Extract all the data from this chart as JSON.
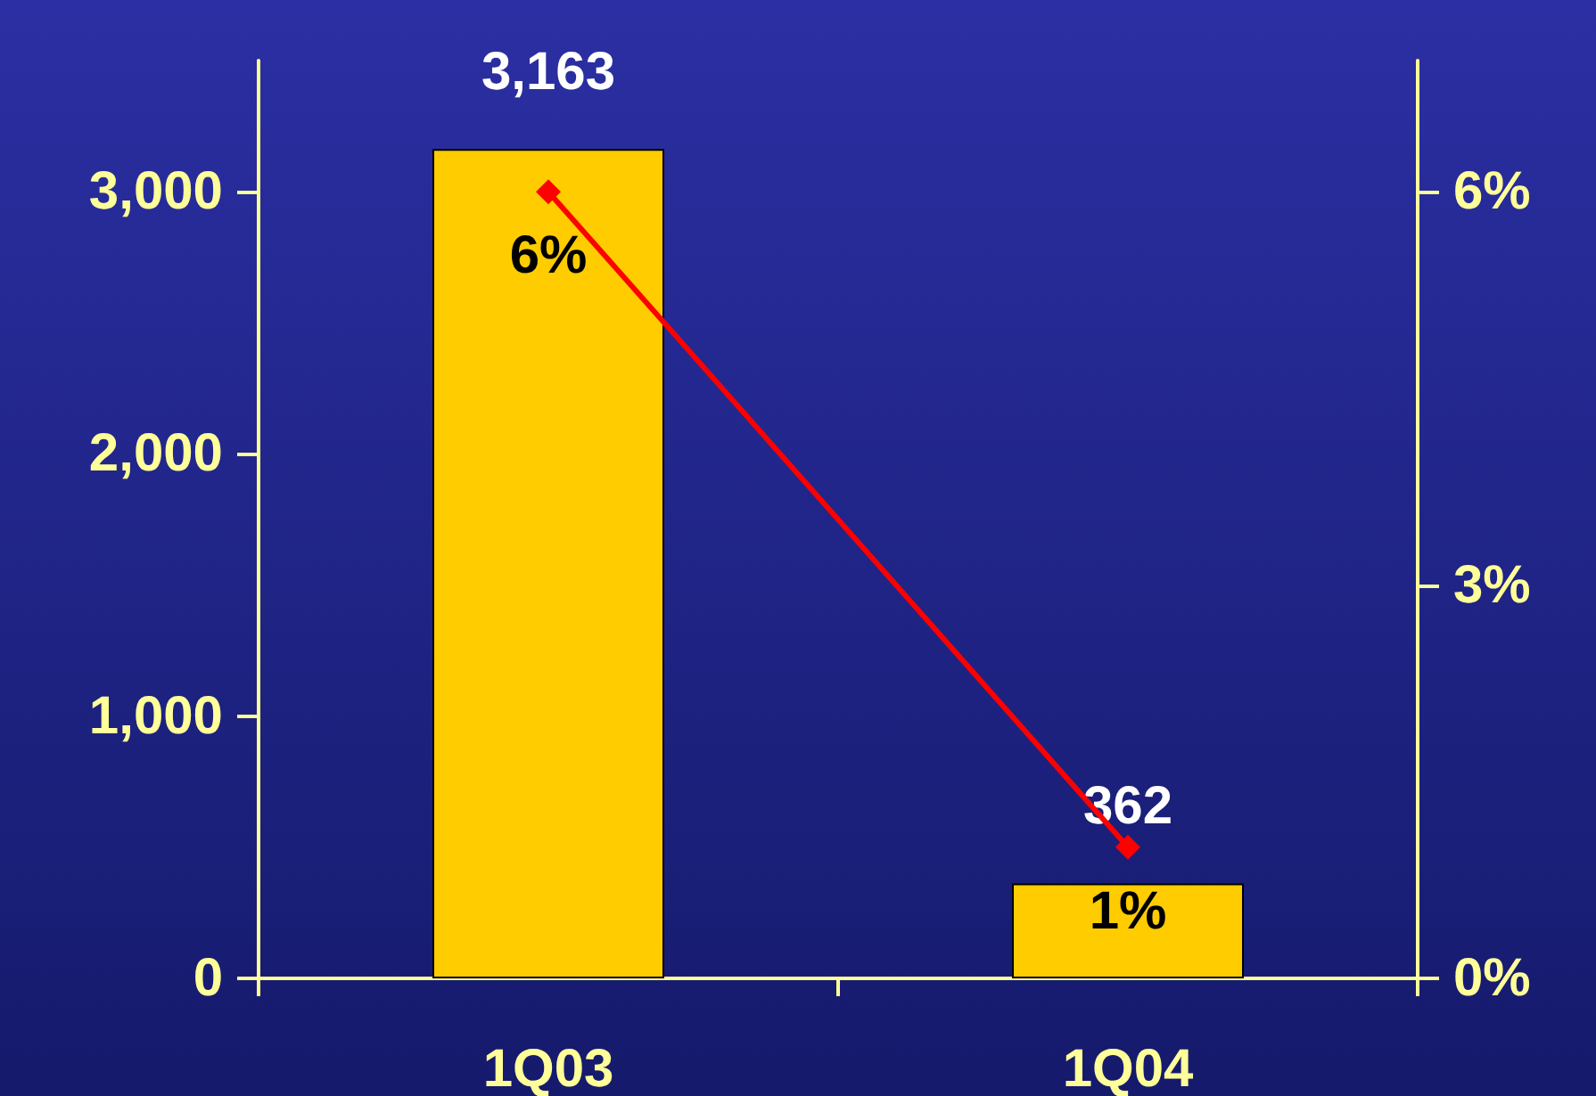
{
  "chart_data": {
    "type": "bar",
    "categories": [
      "1Q03",
      "1Q04"
    ],
    "series": [
      {
        "color": "#ffcc00",
        "values": [
          3163,
          362
        ],
        "value_labels": [
          "3,163",
          "362"
        ]
      },
      {
        "type": "line",
        "axis": "y2",
        "color": "#ff0000",
        "values": [
          6,
          1
        ],
        "value_labels": [
          "6%",
          "1%"
        ],
        "marker": "diamond",
        "line_style": "solid"
      }
    ],
    "ylim": [
      0,
      3500
    ],
    "yticks": [
      0,
      {
        "value": 1000,
        "label": "1,000"
      },
      {
        "value": 2000,
        "label": "2,000"
      },
      {
        "value": 3000,
        "label": "3,000"
      }
    ],
    "y2lim": [
      0,
      7
    ],
    "y2ticks": [
      {
        "value": 0,
        "label": "0%"
      },
      {
        "value": 3,
        "label": "3%"
      },
      {
        "value": 6,
        "label": "6%"
      }
    ],
    "grid": false
  }
}
